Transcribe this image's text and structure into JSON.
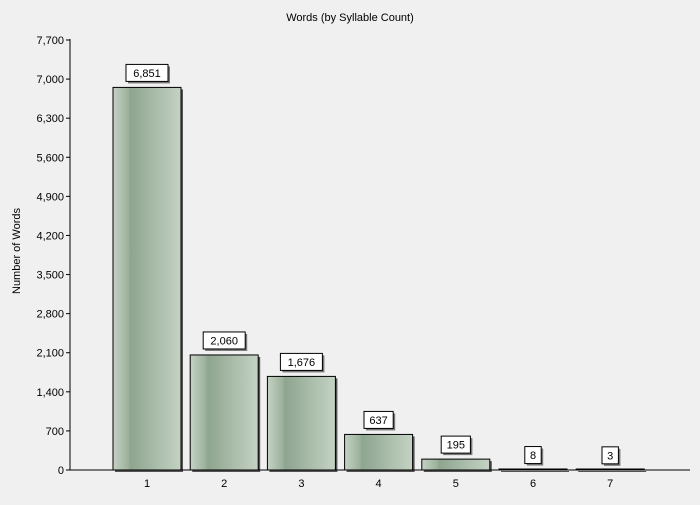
{
  "chart_data": {
    "type": "bar",
    "title": "Words (by Syllable Count)",
    "xlabel": "",
    "ylabel": "Number of Words",
    "categories": [
      "1",
      "2",
      "3",
      "4",
      "5",
      "6",
      "7"
    ],
    "values": [
      6851,
      2060,
      1676,
      637,
      195,
      8,
      3
    ],
    "value_labels": [
      "6,851",
      "2,060",
      "1,676",
      "637",
      "195",
      "8",
      "3"
    ],
    "ylim": [
      0,
      7700
    ],
    "yticks": [
      0,
      700,
      1400,
      2100,
      2800,
      3500,
      4200,
      4900,
      5600,
      6300,
      7000,
      7700
    ],
    "ytick_labels": [
      "0",
      "700",
      "1,400",
      "2,100",
      "2,800",
      "3,500",
      "4,200",
      "4,900",
      "5,600",
      "6,300",
      "7,000",
      "7,700"
    ],
    "grid": false,
    "legend": "none",
    "colors": {
      "bar_light": "#c4d2c4",
      "bar_mid": "#9db29d",
      "bar_dark": "#8ea58f",
      "background": "#f0f0f0",
      "axis": "#000000"
    }
  }
}
